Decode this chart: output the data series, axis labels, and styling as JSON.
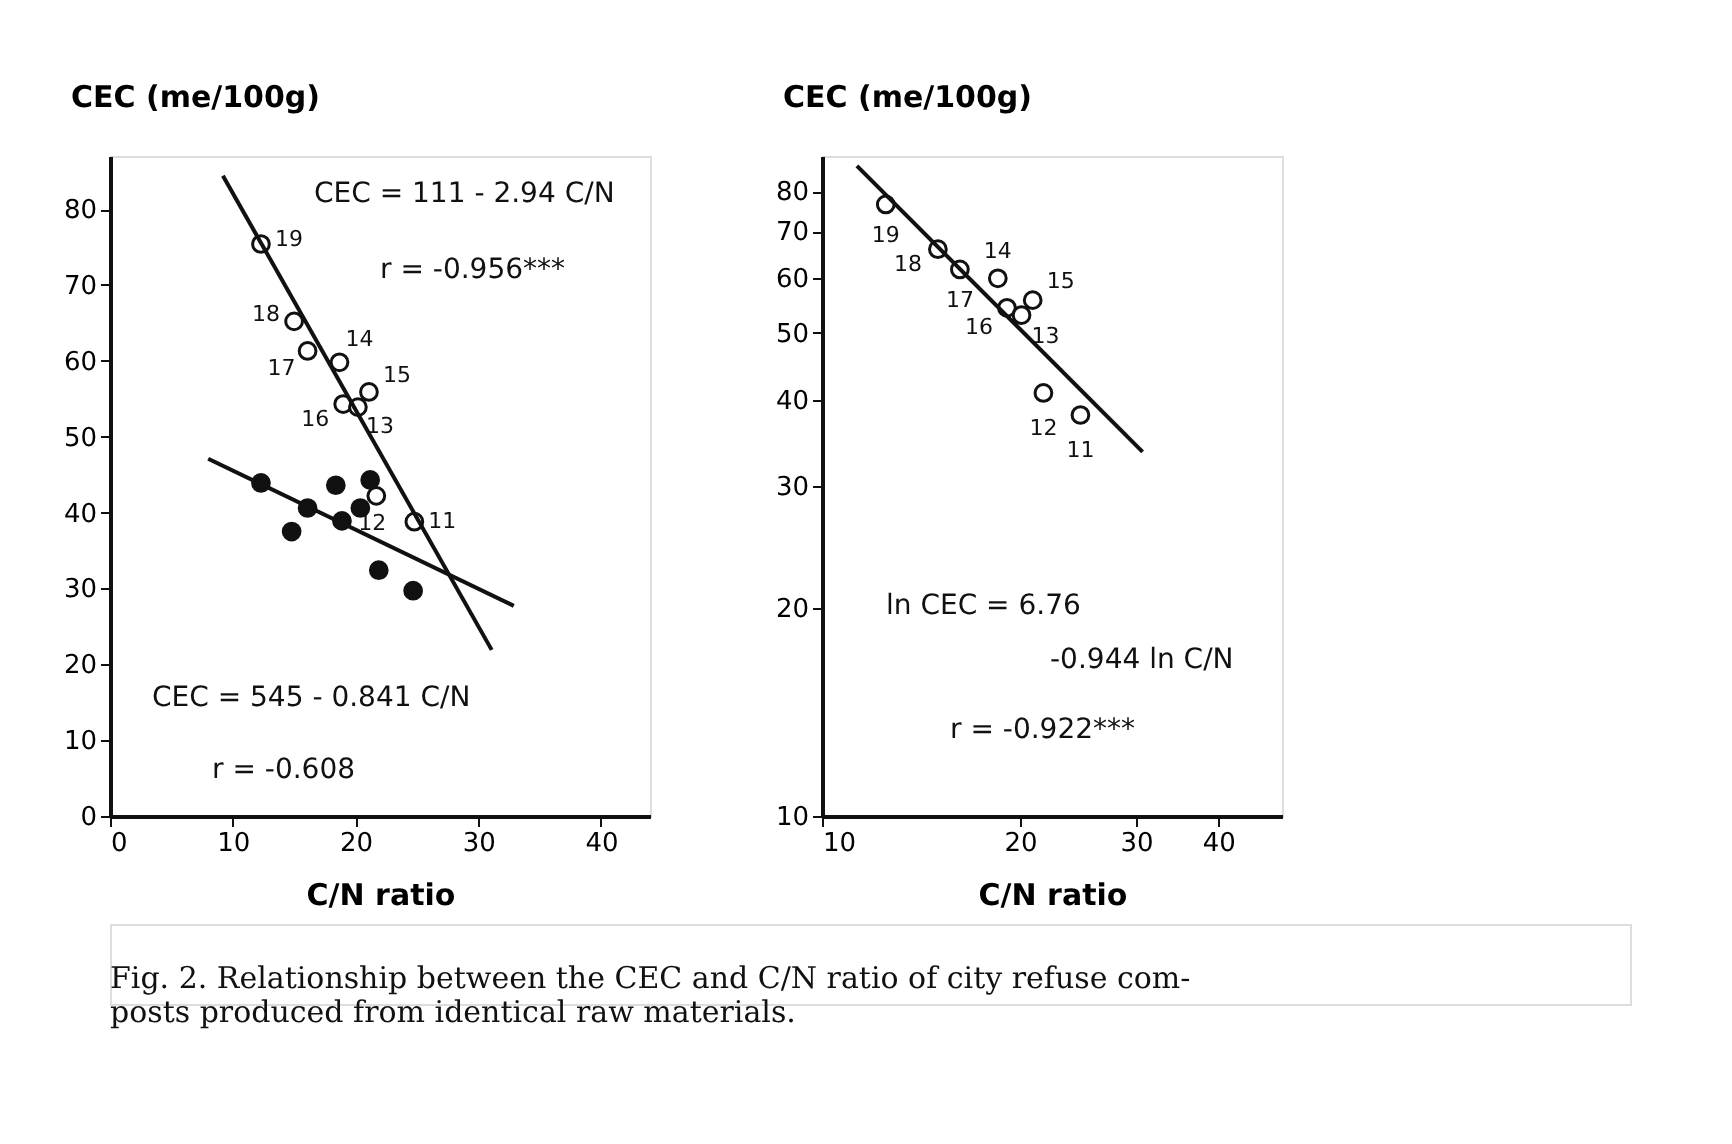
{
  "chart_data": [
    {
      "type": "scatter",
      "xlabel": "C/N ratio",
      "ylabel": "CEC (me/100g)",
      "xlim": [
        0,
        44
      ],
      "ylim": [
        0,
        87
      ],
      "xticks": [
        0,
        10,
        20,
        30,
        40
      ],
      "yticks": [
        0,
        10,
        20,
        30,
        40,
        50,
        60,
        70,
        80
      ],
      "grid": false,
      "marker": "circle",
      "series": [
        {
          "color": "#ffffff",
          "x": [
            12.3,
            15.0,
            16.1,
            18.7,
            19.0,
            20.2,
            21.1,
            21.7,
            24.8
          ],
          "values": [
            75.4,
            65.2,
            61.3,
            59.8,
            54.3,
            53.9,
            55.9,
            42.2,
            38.8
          ]
        },
        {
          "color": "#111111",
          "x": [
            12.3,
            14.8,
            16.1,
            18.4,
            18.9,
            20.4,
            21.2,
            21.9,
            24.7
          ],
          "values": [
            43.9,
            37.5,
            40.6,
            43.6,
            38.9,
            40.6,
            44.3,
            32.4,
            29.7
          ]
        },
        {
          "type": "line",
          "color": "#111111",
          "line_style": "solid",
          "marker": "none",
          "x": [
            9.2,
            31.1
          ],
          "values": [
            84.4,
            21.9
          ]
        },
        {
          "type": "line",
          "color": "#111111",
          "line_style": "solid",
          "marker": "none",
          "x": [
            8.0,
            32.9
          ],
          "values": [
            47.1,
            27.7
          ]
        }
      ],
      "annotations": [
        {
          "text": "19",
          "x": 12.3,
          "y": 75.4
        },
        {
          "text": "18",
          "x": 15.0,
          "y": 65.2
        },
        {
          "text": "17",
          "x": 16.1,
          "y": 61.3
        },
        {
          "text": "14",
          "x": 18.7,
          "y": 59.8
        },
        {
          "text": "16",
          "x": 19.0,
          "y": 54.3
        },
        {
          "text": "13",
          "x": 20.2,
          "y": 53.9
        },
        {
          "text": "15",
          "x": 21.1,
          "y": 55.9
        },
        {
          "text": "12",
          "x": 21.7,
          "y": 42.2
        },
        {
          "text": "11",
          "x": 24.8,
          "y": 38.8
        },
        "CEC = 111 - 2.94 C/N",
        "r = -0.956***",
        "CEC = 545 - 0.841 C/N",
        "r = -0.608"
      ]
    },
    {
      "type": "scatter",
      "xlabel": "C/N ratio",
      "ylabel": "CEC (me/100g)",
      "log": "xy",
      "xlim": [
        10,
        50
      ],
      "ylim": [
        10,
        90
      ],
      "xticks": [
        10,
        20,
        30,
        40
      ],
      "yticks": [
        10,
        20,
        30,
        40,
        50,
        60,
        70,
        80
      ],
      "grid": false,
      "marker": "circle",
      "series": [
        {
          "color": "#ffffff",
          "x": [
            12.5,
            15.0,
            16.2,
            18.5,
            19.1,
            20.1,
            20.9,
            21.7,
            24.7
          ],
          "values": [
            76.6,
            66.0,
            61.7,
            59.9,
            54.3,
            53.0,
            55.7,
            40.9,
            38.0
          ]
        },
        {
          "type": "line",
          "color": "#111111",
          "line_style": "solid",
          "marker": "none",
          "x": [
            11.3,
            30.7
          ],
          "values": [
            87.1,
            33.6
          ]
        }
      ],
      "annotations": [
        {
          "text": "19",
          "x": 12.5,
          "y": 76.6
        },
        {
          "text": "18",
          "x": 15.0,
          "y": 66.0
        },
        {
          "text": "17",
          "x": 16.2,
          "y": 61.7
        },
        {
          "text": "14",
          "x": 18.5,
          "y": 59.9
        },
        {
          "text": "16",
          "x": 19.1,
          "y": 54.3
        },
        {
          "text": "13",
          "x": 20.1,
          "y": 53.0
        },
        {
          "text": "15",
          "x": 20.9,
          "y": 55.7
        },
        {
          "text": "12",
          "x": 21.7,
          "y": 40.9
        },
        {
          "text": "11",
          "x": 24.7,
          "y": 38.0
        },
        "ln CEC = 6.76",
        "-0.944 ln C/N",
        "r = -0.922***",
        "Fig. 2.  Relationship between the CEC and C/N ratio of city refuse com-\nposts produced from identical raw materials."
      ]
    }
  ]
}
